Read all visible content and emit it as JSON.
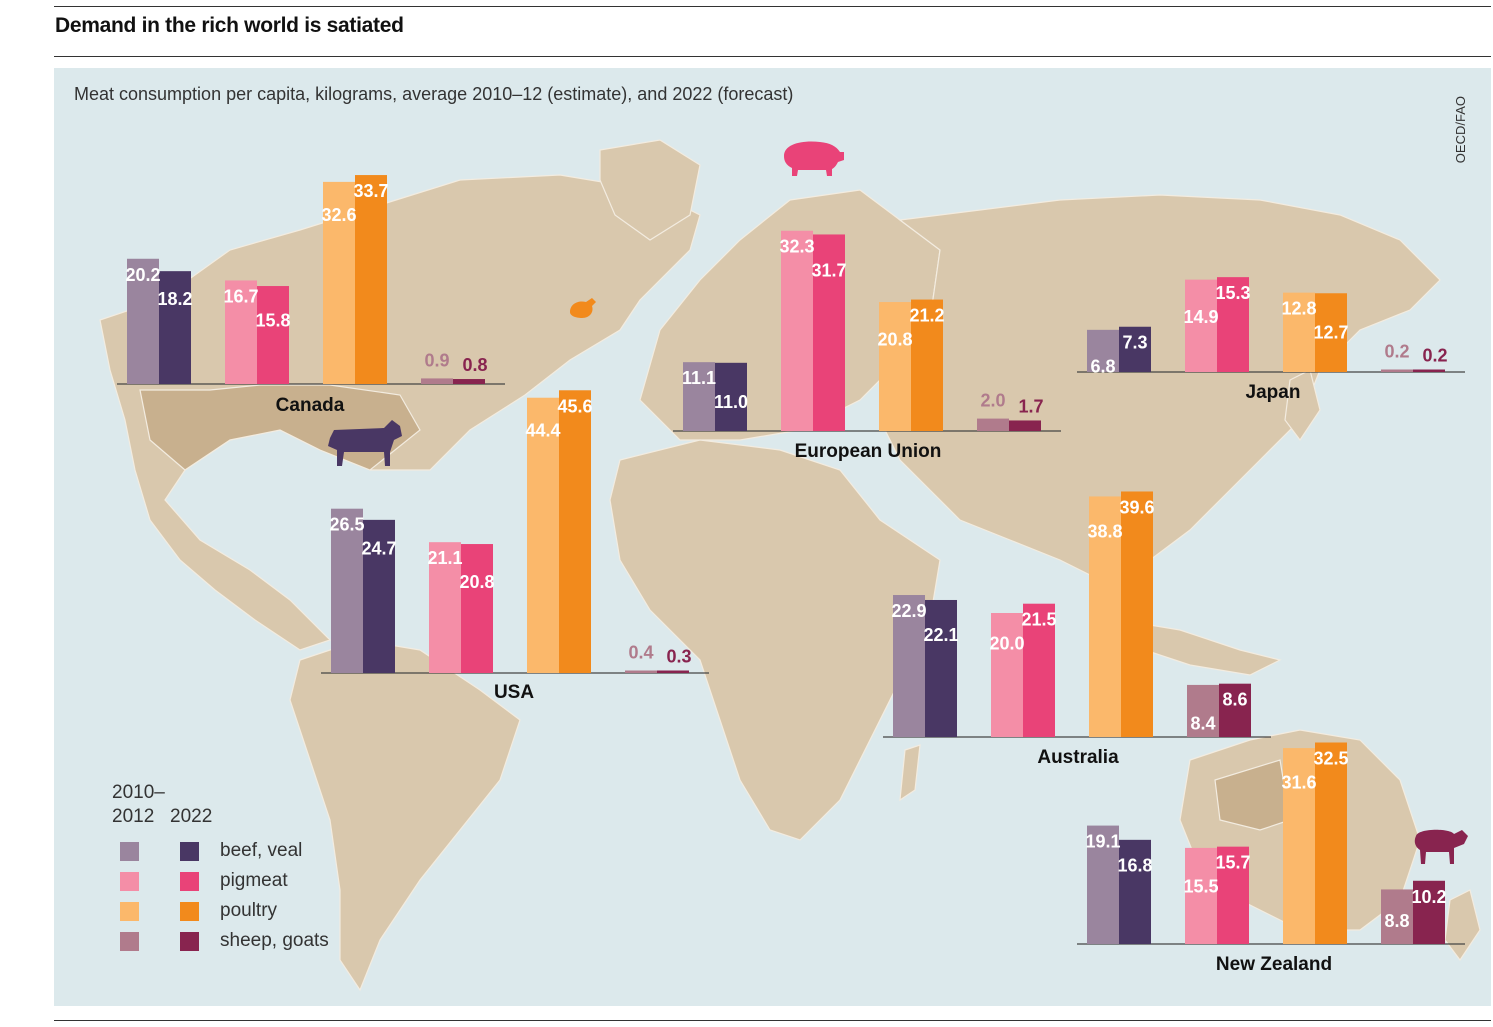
{
  "headline": "Demand in the rich world is satiated",
  "source": "OECD/FAO",
  "legend": {
    "col1_line1": "2010–",
    "col1_line2": "2012",
    "col2": "2022",
    "items": [
      {
        "label": "beef, veal",
        "color_2010": "#9a859e",
        "color_2022": "#493764"
      },
      {
        "label": "pigmeat",
        "color_2010": "#f48ea7",
        "color_2022": "#e94378"
      },
      {
        "label": "poultry",
        "color_2010": "#fbb86b",
        "color_2022": "#f28a1c"
      },
      {
        "label": "sheep, goats",
        "color_2010": "#b07b8c",
        "color_2022": "#88244f"
      }
    ]
  },
  "colors": {
    "panel": "#dce9ec",
    "land": "#d9c8ad",
    "land_highlight": "#c8b08e",
    "value_label_light": "#ffffff",
    "small_label_2010": "#b07b8c",
    "small_label_2022": "#88244f"
  },
  "chart_data": {
    "type": "bar",
    "title": "Meat consumption per capita, kilograms, average 2010–12 (estimate), and 2022 (forecast)",
    "unit": "kilograms per capita",
    "categories": [
      "beef, veal",
      "pigmeat",
      "poultry",
      "sheep, goats"
    ],
    "series_names": [
      "2010–2012",
      "2022"
    ],
    "regions": [
      {
        "name": "Canada",
        "icon": "",
        "values_2010": [
          20.2,
          16.7,
          32.6,
          0.9
        ],
        "values_2022": [
          18.2,
          15.8,
          33.7,
          0.8
        ]
      },
      {
        "name": "USA",
        "icon": "cow-icon",
        "values_2010": [
          26.5,
          21.1,
          44.4,
          0.4
        ],
        "values_2022": [
          24.7,
          20.8,
          45.6,
          0.3
        ]
      },
      {
        "name": "European Union",
        "icon": "pig-icon",
        "values_2010": [
          11.1,
          32.3,
          20.8,
          2.0
        ],
        "values_2022": [
          11.0,
          31.7,
          21.2,
          1.7
        ]
      },
      {
        "name": "Japan",
        "icon": "",
        "values_2010": [
          6.8,
          14.9,
          12.8,
          0.2
        ],
        "values_2022": [
          7.3,
          15.3,
          12.7,
          0.2
        ]
      },
      {
        "name": "Australia",
        "icon": "",
        "values_2010": [
          22.9,
          20.0,
          38.8,
          8.4
        ],
        "values_2022": [
          22.1,
          21.5,
          39.6,
          8.6
        ]
      },
      {
        "name": "New Zealand",
        "icon": "sheep-icon",
        "values_2010": [
          19.1,
          15.5,
          31.6,
          8.8
        ],
        "values_2022": [
          16.8,
          15.7,
          32.5,
          10.2
        ]
      }
    ]
  }
}
